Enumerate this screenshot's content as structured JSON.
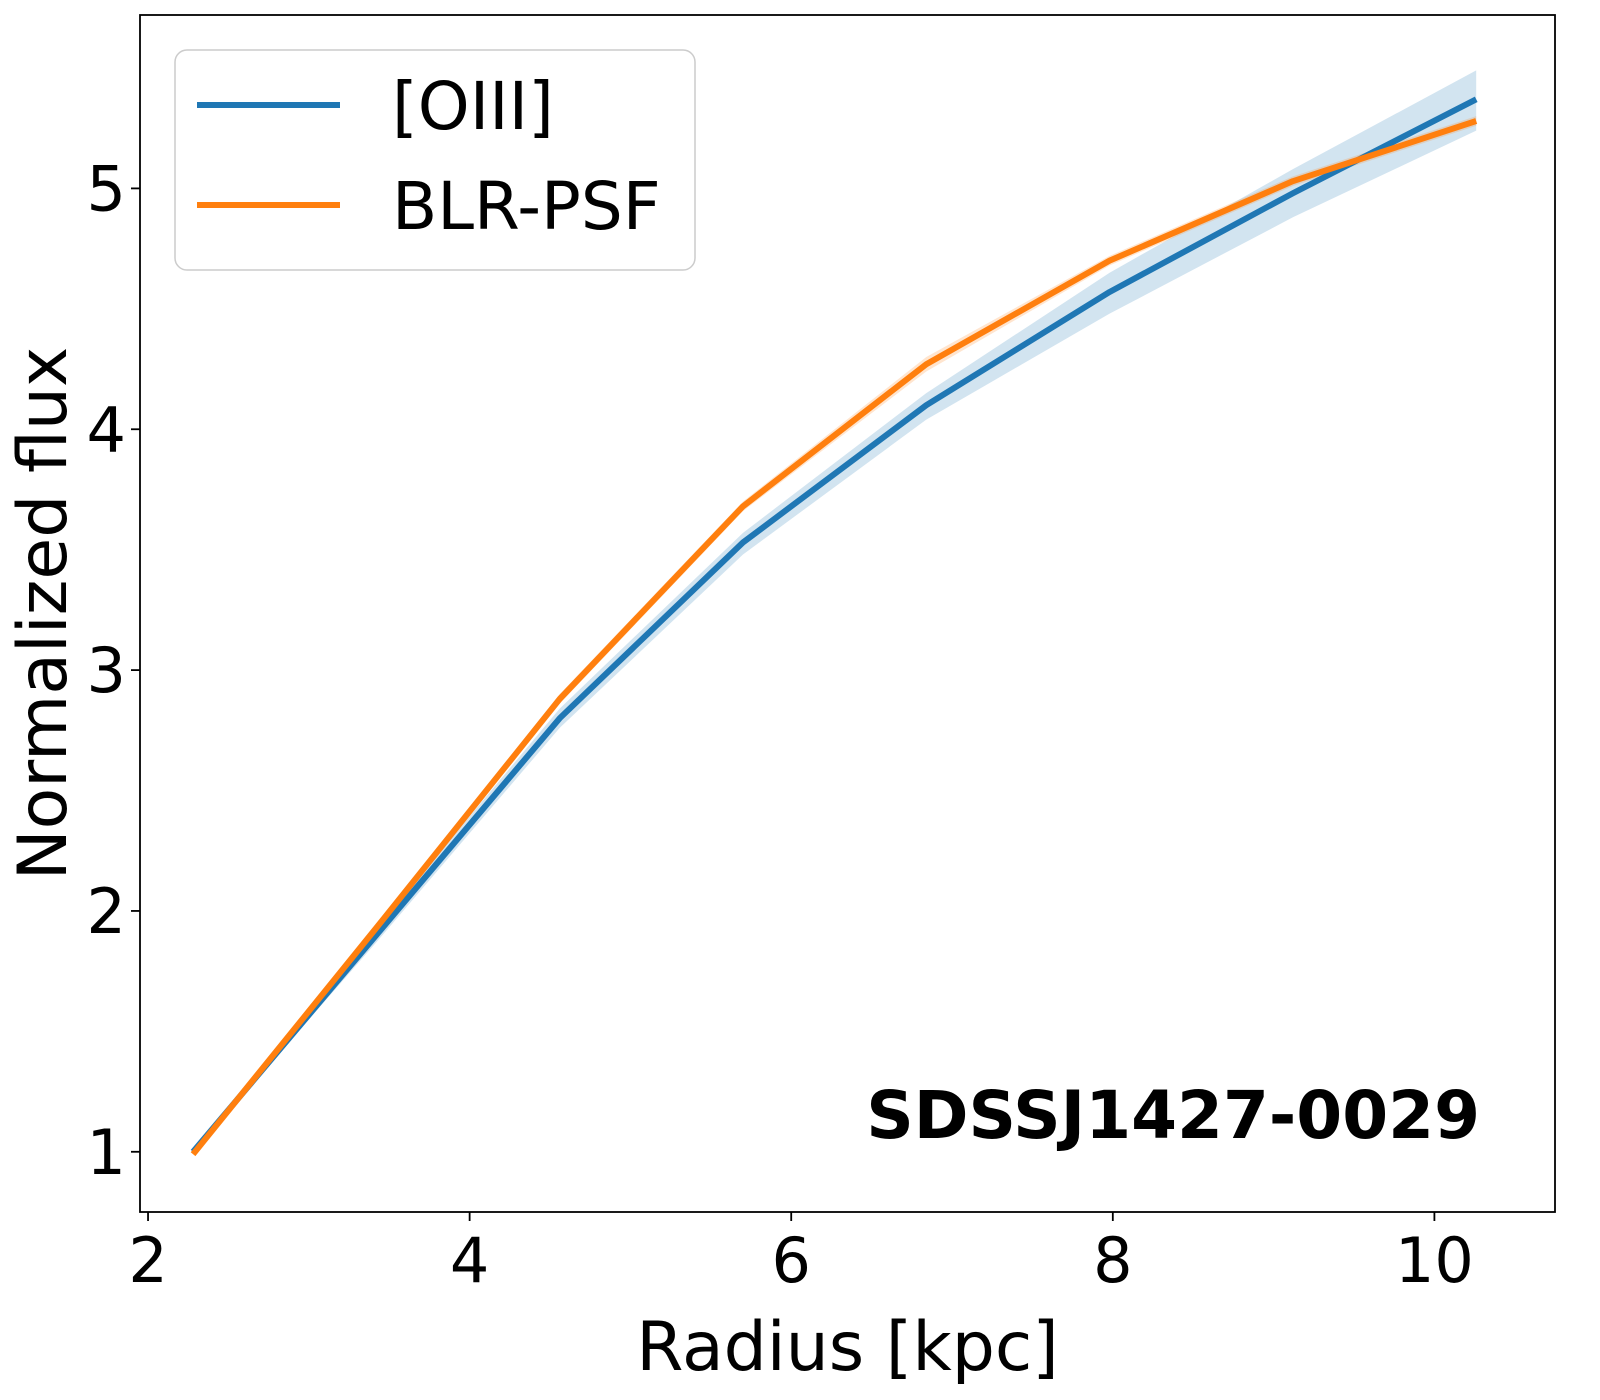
{
  "chart_data": {
    "type": "line",
    "title": "",
    "xlabel": "Radius [kpc]",
    "ylabel": "Normalized flux",
    "xlim": [
      1.95,
      10.75
    ],
    "ylim": [
      0.75,
      5.72
    ],
    "xticks": [
      2,
      4,
      6,
      8,
      10
    ],
    "yticks": [
      1,
      2,
      3,
      4,
      5
    ],
    "grid": false,
    "legend_position": "top-left",
    "annotation": "SDSSJ1427-0029",
    "series": [
      {
        "name": "[OIII]",
        "color": "#1f77b4",
        "x": [
          2.28,
          3.42,
          4.56,
          5.7,
          6.84,
          7.98,
          9.12,
          10.26
        ],
        "y": [
          1.0,
          1.9,
          2.8,
          3.53,
          4.1,
          4.57,
          4.98,
          5.37
        ],
        "band_lower": [
          1.0,
          1.87,
          2.76,
          3.48,
          4.04,
          4.48,
          4.88,
          5.24
        ],
        "band_upper": [
          1.0,
          1.93,
          2.84,
          3.57,
          4.15,
          4.65,
          5.08,
          5.49
        ]
      },
      {
        "name": "BLR-PSF",
        "color": "#ff7f0e",
        "x": [
          2.28,
          3.42,
          4.56,
          5.7,
          6.84,
          7.98,
          9.12,
          10.26
        ],
        "y": [
          0.99,
          1.93,
          2.88,
          3.68,
          4.27,
          4.7,
          5.03,
          5.28
        ],
        "band_lower": [
          0.99,
          1.92,
          2.86,
          3.66,
          4.24,
          4.68,
          5.01,
          5.26
        ],
        "band_upper": [
          0.99,
          1.94,
          2.9,
          3.7,
          4.3,
          4.72,
          5.05,
          5.3
        ]
      }
    ]
  }
}
